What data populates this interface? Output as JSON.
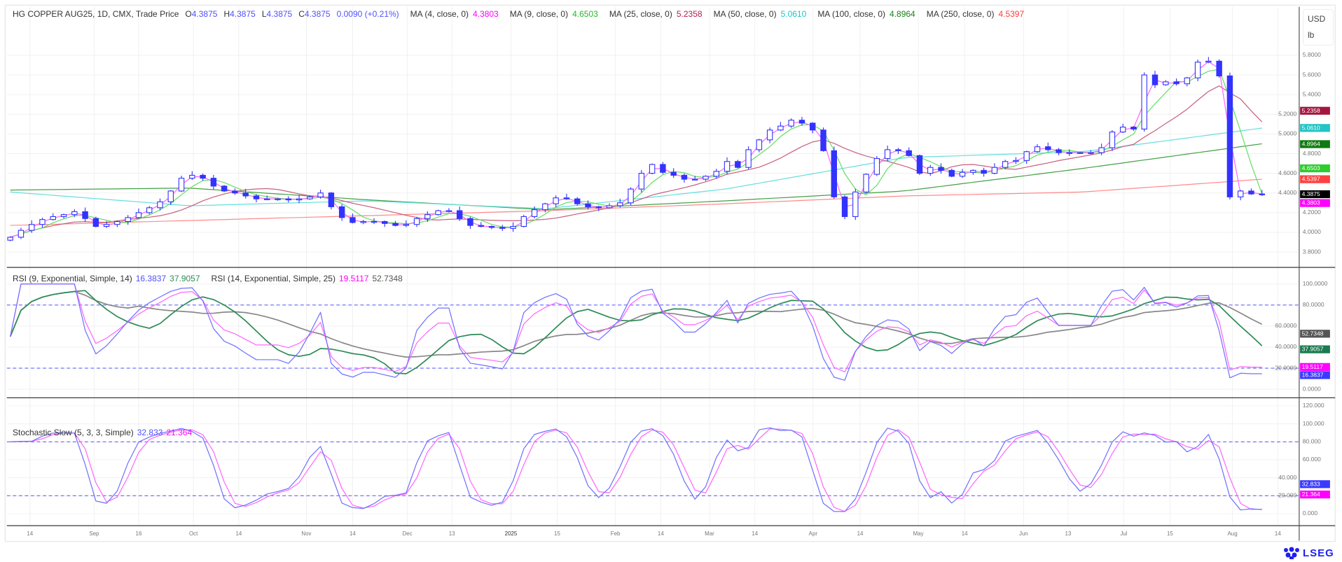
{
  "header": {
    "symbol": "HG COPPER AUG25, 1D, CMX, Trade Price",
    "o_label": "O",
    "o": "4.3875",
    "h_label": "H",
    "h": "4.3875",
    "l_label": "L",
    "l": "4.3875",
    "c_label": "C",
    "c": "4.3875",
    "change": "0.0090 (+0.21%)",
    "value_color": "#5050ff"
  },
  "ma_legend": [
    {
      "label": "MA (4, close, 0)",
      "value": "4.3803",
      "color": "#ff00ff"
    },
    {
      "label": "MA (9, close, 0)",
      "value": "4.6503",
      "color": "#22bb22"
    },
    {
      "label": "MA (25, close, 0)",
      "value": "5.2358",
      "color": "#b0204a"
    },
    {
      "label": "MA (50, close, 0)",
      "value": "5.0610",
      "color": "#1fc4c4"
    },
    {
      "label": "MA (100, close, 0)",
      "value": "4.8964",
      "color": "#1b7f1b"
    },
    {
      "label": "MA (250, close, 0)",
      "value": "4.5397",
      "color": "#ff3b3b"
    }
  ],
  "currency": "USD",
  "unit": "lb",
  "rsi_legend": [
    {
      "label": "RSI (9, Exponential, Simple, 14)",
      "value1": "16.3837",
      "value2": "37.9057",
      "color1": "#5050ff",
      "color2": "#2e8b57"
    },
    {
      "label": "RSI (14, Exponential, Simple, 25)",
      "value1": "19.5117",
      "value2": "52.7348",
      "color1": "#ff00ff",
      "color2": "#555555"
    }
  ],
  "stoch_legend": {
    "label": "Stochastic Slow (5, 3, 3, Simple)",
    "k": "32.833",
    "d": "21.364",
    "k_color": "#5050ff",
    "d_color": "#ff00ff"
  },
  "price_axis": [
    "5.8000",
    "5.6000",
    "5.4000",
    "5.2000",
    "5.0000",
    "4.8000",
    "4.6000",
    "4.4000",
    "4.2000",
    "4.0000",
    "3.8000"
  ],
  "rsi_axis": [
    "100.0000",
    "80.0000",
    "60.0000",
    "40.0000",
    "20.0000",
    "0.0000"
  ],
  "stoch_axis": [
    "120.000",
    "100.000",
    "80.000",
    "60.000",
    "40.000",
    "20.000",
    "0.000"
  ],
  "time_axis": [
    "14",
    "Sep",
    "16",
    "Oct",
    "14",
    "Nov",
    "14",
    "Dec",
    "13",
    "2025",
    "15",
    "Feb",
    "14",
    "Mar",
    "14",
    "Apr",
    "14",
    "May",
    "14",
    "Jun",
    "13",
    "Jul",
    "15",
    "Aug",
    "14"
  ],
  "price_badges": [
    {
      "value": "5.2358",
      "color": "#a3163f"
    },
    {
      "value": "5.0610",
      "color": "#22c4c4"
    },
    {
      "value": "4.8964",
      "color": "#0f7a0f"
    },
    {
      "value": "4.6503",
      "color": "#2ecc2e"
    },
    {
      "value": "4.5397",
      "color": "#ff4040"
    },
    {
      "value": "4.3875",
      "color": "#000000"
    },
    {
      "value": "4.3803",
      "color": "#ff00ff"
    }
  ],
  "rsi_badges": [
    {
      "value": "52.7348",
      "color": "#555555"
    },
    {
      "value": "37.9057",
      "color": "#1a7a50"
    },
    {
      "value": "19.5117",
      "color": "#ff00ff"
    },
    {
      "value": "16.3837",
      "color": "#3a3aff"
    }
  ],
  "stoch_badges": [
    {
      "value": "32.833",
      "color": "#3a3aff"
    },
    {
      "value": "21.364",
      "color": "#ff00ff"
    }
  ],
  "logo": "LSEG",
  "chart_data": {
    "type": "candlestick",
    "series_note_free": true,
    "ylim": [
      3.7,
      5.95
    ],
    "rsi_ylim": [
      0,
      100
    ],
    "stoch_ylim": [
      0,
      120
    ],
    "levels": {
      "rsi": [
        80,
        20
      ],
      "stoch": [
        80,
        20
      ]
    },
    "grid": true,
    "close": [
      3.95,
      4.02,
      4.08,
      4.13,
      4.16,
      4.18,
      4.21,
      4.14,
      4.06,
      4.08,
      4.11,
      4.15,
      4.2,
      4.25,
      4.31,
      4.42,
      4.55,
      4.58,
      4.55,
      4.47,
      4.42,
      4.4,
      4.37,
      4.34,
      4.34,
      4.34,
      4.33,
      4.34,
      4.36,
      4.4,
      4.26,
      4.15,
      4.1,
      4.11,
      4.11,
      4.09,
      4.07,
      4.08,
      4.14,
      4.18,
      4.22,
      4.22,
      4.14,
      4.07,
      4.06,
      4.05,
      4.04,
      4.06,
      4.16,
      4.23,
      4.29,
      4.35,
      4.34,
      4.29,
      4.26,
      4.25,
      4.27,
      4.3,
      4.44,
      4.6,
      4.69,
      4.61,
      4.58,
      4.54,
      4.54,
      4.57,
      4.62,
      4.72,
      4.66,
      4.84,
      4.94,
      5.04,
      5.08,
      5.14,
      5.11,
      5.04,
      4.83,
      4.36,
      4.16,
      4.41,
      4.59,
      4.75,
      4.84,
      4.83,
      4.78,
      4.6,
      4.66,
      4.63,
      4.57,
      4.61,
      4.63,
      4.6,
      4.66,
      4.72,
      4.73,
      4.82,
      4.87,
      4.84,
      4.81,
      4.81,
      4.81,
      4.81,
      4.86,
      5.02,
      5.07,
      5.05,
      5.6,
      5.5,
      5.53,
      5.51,
      5.57,
      5.73,
      5.74,
      5.59,
      4.36,
      4.42,
      4.39,
      4.3875
    ],
    "ma50": [
      4.41,
      4.27,
      4.32,
      4.24,
      4.44,
      4.76,
      4.82,
      5.06
    ],
    "ma100": [
      4.43,
      4.45,
      4.33,
      4.23,
      4.32,
      4.42,
      4.65,
      4.9
    ],
    "ma250": [
      4.07,
      4.12,
      4.17,
      4.22,
      4.29,
      4.37,
      4.41,
      4.54
    ],
    "colors": {
      "candle": "#3333ff",
      "ma4": "#ff66ff",
      "ma9": "#66dd66",
      "ma25": "#c8607e",
      "ma50": "#66dede",
      "ma100": "#44a044",
      "ma250": "#ff8a8a",
      "rsi9": "#7070ff",
      "rsi9_signal": "#2e8b57",
      "rsi14": "#ff66ff",
      "rsi14_signal": "#888888",
      "stoch_k": "#7070ff",
      "stoch_d": "#ff66ff",
      "level": "#6666ff"
    }
  }
}
